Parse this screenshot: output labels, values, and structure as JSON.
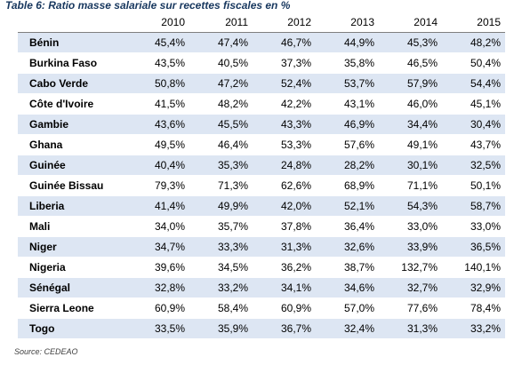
{
  "caption": "Table 6: Ratio masse salariale sur recettes fiscales en %",
  "years": [
    "2010",
    "2011",
    "2012",
    "2013",
    "2014",
    "2015"
  ],
  "rows": [
    {
      "country": "Bénin",
      "values": [
        "45,4%",
        "47,4%",
        "46,7%",
        "44,9%",
        "45,3%",
        "48,2%"
      ]
    },
    {
      "country": "Burkina Faso",
      "values": [
        "43,5%",
        "40,5%",
        "37,3%",
        "35,8%",
        "46,5%",
        "50,4%"
      ]
    },
    {
      "country": "Cabo Verde",
      "values": [
        "50,8%",
        "47,2%",
        "52,4%",
        "53,7%",
        "57,9%",
        "54,4%"
      ]
    },
    {
      "country": "Côte d'Ivoire",
      "values": [
        "41,5%",
        "48,2%",
        "42,2%",
        "43,1%",
        "46,0%",
        "45,1%"
      ]
    },
    {
      "country": "Gambie",
      "values": [
        "43,6%",
        "45,5%",
        "43,3%",
        "46,9%",
        "34,4%",
        "30,4%"
      ]
    },
    {
      "country": "Ghana",
      "values": [
        "49,5%",
        "46,4%",
        "53,3%",
        "57,6%",
        "49,1%",
        "43,7%"
      ]
    },
    {
      "country": "Guinée",
      "values": [
        "40,4%",
        "35,3%",
        "24,8%",
        "28,2%",
        "30,1%",
        "32,5%"
      ]
    },
    {
      "country": "Guinée Bissau",
      "values": [
        "79,3%",
        "71,3%",
        "62,6%",
        "68,9%",
        "71,1%",
        "50,1%"
      ]
    },
    {
      "country": "Liberia",
      "values": [
        "41,4%",
        "49,9%",
        "42,0%",
        "52,1%",
        "54,3%",
        "58,7%"
      ]
    },
    {
      "country": "Mali",
      "values": [
        "34,0%",
        "35,7%",
        "37,8%",
        "36,4%",
        "33,0%",
        "33,0%"
      ]
    },
    {
      "country": "Niger",
      "values": [
        "34,7%",
        "33,3%",
        "31,3%",
        "32,6%",
        "33,9%",
        "36,5%"
      ]
    },
    {
      "country": "Nigeria",
      "values": [
        "39,6%",
        "34,5%",
        "36,2%",
        "38,7%",
        "132,7%",
        "140,1%"
      ]
    },
    {
      "country": "Sénégal",
      "values": [
        "32,8%",
        "33,2%",
        "34,1%",
        "34,6%",
        "32,7%",
        "32,9%"
      ]
    },
    {
      "country": "Sierra Leone",
      "values": [
        "60,9%",
        "58,4%",
        "60,9%",
        "57,0%",
        "77,6%",
        "78,4%"
      ]
    },
    {
      "country": "Togo",
      "values": [
        "33,5%",
        "35,9%",
        "36,7%",
        "32,4%",
        "31,3%",
        "33,2%"
      ]
    }
  ],
  "source": "Source: CEDEAO",
  "colors": {
    "caption": "#17375e",
    "band": "#dde6f3"
  }
}
